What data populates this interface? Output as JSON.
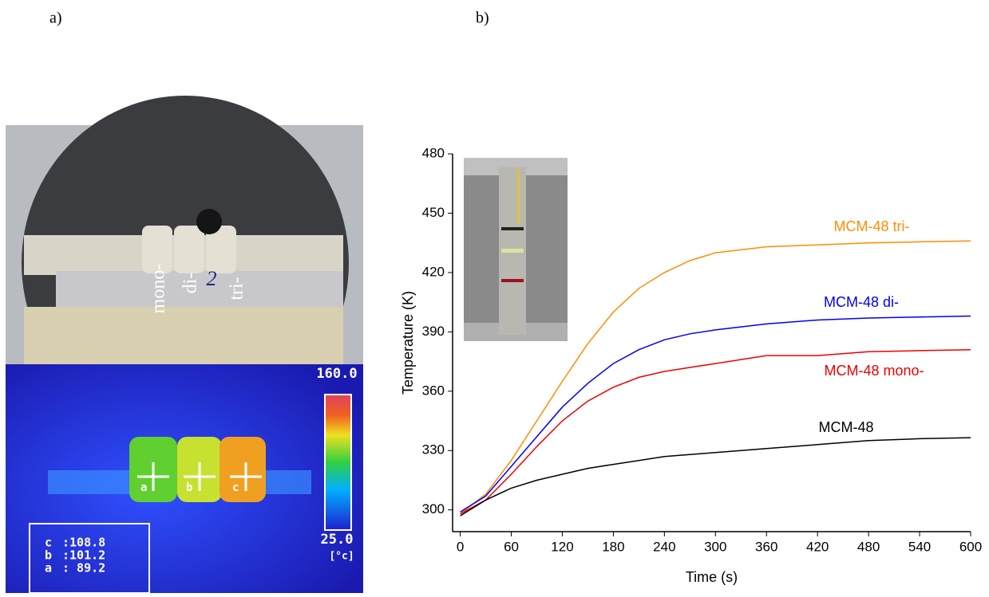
{
  "panel_a": {
    "label": "a)",
    "photo_labels": [
      "mono-",
      "di-",
      "2",
      "tri-"
    ],
    "thermal": {
      "scale_max": "160.0",
      "scale_min": "25.0",
      "unit": "[°c]",
      "markers": [
        "a",
        "b",
        "c"
      ],
      "readings": [
        {
          "name": "c",
          "value": ":108.8"
        },
        {
          "name": "b",
          "value": ":101.2"
        },
        {
          "name": "a",
          "value": ": 89.2"
        }
      ]
    }
  },
  "chart_data": {
    "type": "line",
    "label": "b)",
    "x_label": "Time (s)",
    "y_label": "Temperature (K)",
    "x": [
      0,
      30,
      60,
      90,
      120,
      150,
      180,
      210,
      240,
      270,
      300,
      360,
      420,
      480,
      540,
      600
    ],
    "series": [
      {
        "name": "MCM-48 tri-",
        "color": "#ff8c00",
        "values": [
          298,
          308,
          325,
          345,
          365,
          384,
          400,
          412,
          420,
          426,
          430,
          433,
          434,
          435,
          435.5,
          436
        ]
      },
      {
        "name": "MCM-48 di-",
        "color": "#0000ee",
        "values": [
          299,
          307,
          322,
          337,
          352,
          364,
          374,
          381,
          386,
          389,
          391,
          394,
          396,
          397,
          397.5,
          398
        ]
      },
      {
        "name": "MCM-48 mono-",
        "color": "#ee0000",
        "values": [
          298,
          305,
          318,
          332,
          345,
          355,
          362,
          367,
          370,
          372,
          374,
          378,
          378,
          380,
          380.5,
          381
        ]
      },
      {
        "name": "MCM-48",
        "color": "#000000",
        "values": [
          297,
          305,
          311,
          315,
          318,
          321,
          323,
          325,
          327,
          328,
          329,
          331,
          333,
          335,
          336,
          336.5
        ]
      }
    ],
    "xlim": [
      -9,
      600
    ],
    "xticks": [
      0,
      60,
      120,
      180,
      240,
      300,
      360,
      420,
      480,
      540,
      600
    ],
    "ylim": [
      289,
      480
    ],
    "yticks": [
      300,
      330,
      360,
      390,
      420,
      450,
      480
    ]
  }
}
